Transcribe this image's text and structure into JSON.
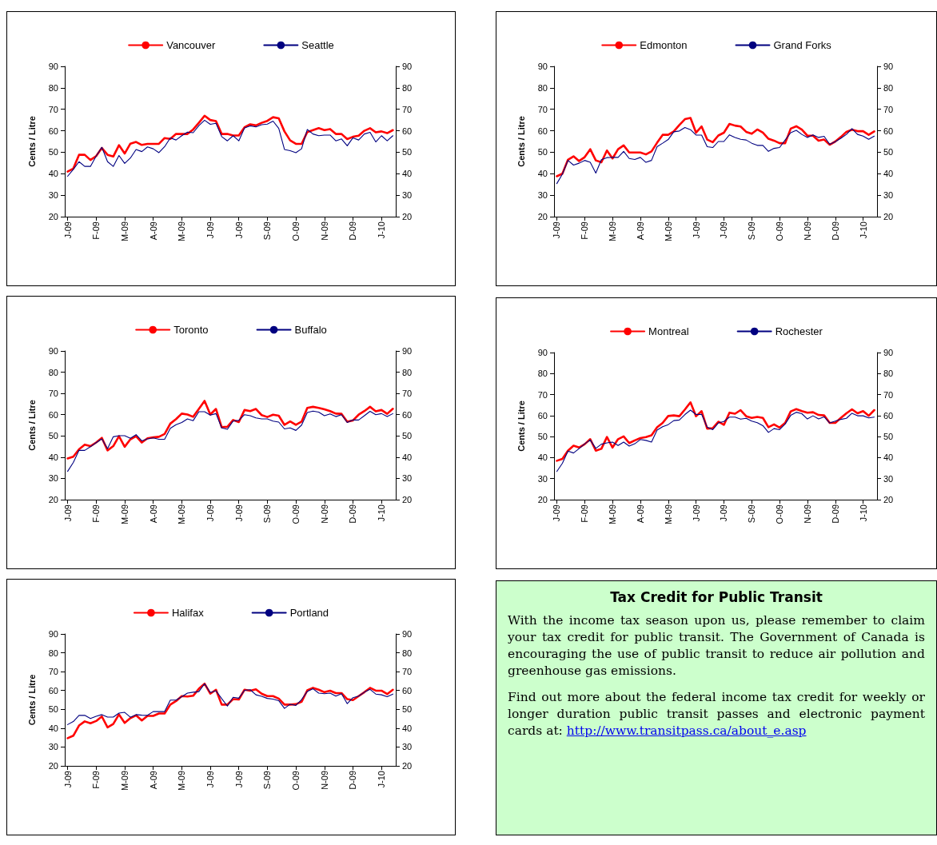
{
  "chart_data": [
    {
      "type": "line",
      "ylabel": "Cents / Litre",
      "ylim": [
        20,
        90
      ],
      "yticks": [
        20,
        30,
        40,
        50,
        60,
        70,
        80,
        90
      ],
      "y2lim": [
        20,
        90
      ],
      "y2ticks": [
        20,
        30,
        40,
        50,
        60,
        70,
        80,
        90
      ],
      "legend": "top",
      "marker": "none",
      "line_style": "solid",
      "categories": [
        "J-09",
        null,
        null,
        null,
        null,
        "F-09",
        null,
        null,
        null,
        null,
        "M-09",
        null,
        null,
        null,
        null,
        "A-09",
        null,
        null,
        null,
        null,
        "M-09",
        null,
        null,
        null,
        null,
        "J-09",
        null,
        null,
        null,
        null,
        "J-09",
        null,
        null,
        null,
        null,
        "S-09",
        null,
        null,
        null,
        null,
        "O-09",
        null,
        null,
        null,
        null,
        "N-09",
        null,
        null,
        null,
        null,
        "D-09",
        null,
        null,
        null,
        null,
        "J-10",
        null,
        null
      ],
      "series": [
        {
          "name": "Vancouver",
          "color": "#ff0000",
          "values": [
            41,
            42.4,
            48.8,
            48.8,
            46.4,
            48.2,
            52,
            48.8,
            48,
            53.3,
            49.4,
            54,
            54.8,
            53.4,
            53.9,
            53.9,
            53.9,
            56.6,
            56.2,
            58.5,
            58.5,
            58.5,
            60.6,
            63.7,
            67,
            65,
            64.5,
            58.5,
            58.5,
            57.8,
            57.8,
            61.6,
            63,
            62.5,
            63.7,
            64.6,
            66.3,
            65.8,
            59.7,
            55.5,
            53.9,
            53.9,
            59.4,
            60.3,
            61.2,
            60.3,
            60.8,
            58.5,
            58.5,
            56.1,
            57.2,
            57.7,
            60,
            61.2,
            59.3,
            59.7,
            58.9,
            60.3
          ]
        },
        {
          "name": "Seattle",
          "color": "#000080",
          "values": [
            38.8,
            42,
            45.6,
            43.4,
            43.4,
            48.2,
            52.3,
            45.6,
            43.4,
            48.5,
            44.8,
            47.3,
            51.3,
            50.3,
            52.5,
            51.6,
            49.8,
            52.6,
            56.7,
            55.7,
            57.7,
            59.4,
            59.1,
            62.4,
            64.9,
            63,
            63.5,
            57.3,
            55.3,
            57.7,
            55.3,
            61.3,
            62.3,
            61.8,
            62.8,
            63.1,
            64.5,
            61.1,
            51.3,
            50.7,
            49.8,
            51.6,
            60.6,
            58.5,
            57.7,
            58,
            58,
            55.3,
            56.2,
            53,
            56.7,
            55.7,
            58.5,
            59.3,
            54.8,
            57.7,
            55.3,
            57.7
          ]
        }
      ]
    },
    {
      "type": "line",
      "ylabel": "Cents / Litre",
      "ylim": [
        20,
        90
      ],
      "yticks": [
        20,
        30,
        40,
        50,
        60,
        70,
        80,
        90
      ],
      "y2lim": [
        20,
        90
      ],
      "y2ticks": [
        20,
        30,
        40,
        50,
        60,
        70,
        80,
        90
      ],
      "legend": "top",
      "marker": "none",
      "line_style": "solid",
      "categories": [
        "J-09",
        null,
        null,
        null,
        null,
        "F-09",
        null,
        null,
        null,
        null,
        "M-09",
        null,
        null,
        null,
        null,
        "A-09",
        null,
        null,
        null,
        null,
        "M-09",
        null,
        null,
        null,
        null,
        "J-09",
        null,
        null,
        null,
        null,
        "J-09",
        null,
        null,
        null,
        null,
        "S-09",
        null,
        null,
        null,
        null,
        "O-09",
        null,
        null,
        null,
        null,
        "N-09",
        null,
        null,
        null,
        null,
        "D-09",
        null,
        null,
        null,
        null,
        "J-10",
        null,
        null
      ],
      "series": [
        {
          "name": "Edmonton",
          "color": "#ff0000",
          "values": [
            38.8,
            40,
            46.5,
            48.1,
            45.9,
            47.7,
            51.4,
            46.2,
            45.3,
            50.8,
            47.1,
            51.4,
            53.2,
            49.9,
            49.9,
            49.9,
            49,
            50.4,
            54.4,
            58.1,
            58.1,
            59.7,
            62.7,
            65.4,
            66,
            59.1,
            62,
            55.9,
            54.7,
            57.8,
            59.1,
            63.2,
            62.4,
            62,
            59.5,
            58.6,
            60.6,
            59.1,
            56.3,
            55.4,
            54.2,
            54.2,
            61,
            62.1,
            60.5,
            57.7,
            57.7,
            55.4,
            55.9,
            53.5,
            55,
            57.1,
            59.5,
            60.5,
            59.8,
            59.8,
            58.1,
            59.7
          ]
        },
        {
          "name": "Grand Forks",
          "color": "#000080",
          "values": [
            35.4,
            39.8,
            46.2,
            44,
            44.9,
            46.2,
            45.3,
            40.3,
            46.5,
            47.5,
            47.6,
            47.6,
            50.4,
            47.1,
            46.6,
            47.6,
            45.3,
            46.2,
            52.6,
            54.2,
            55.9,
            59.5,
            59.9,
            61.5,
            60.5,
            58,
            58,
            52.6,
            52.2,
            55,
            55,
            58.1,
            56.9,
            56,
            55.7,
            54.2,
            53.2,
            53.2,
            50.4,
            51.8,
            52.2,
            55.7,
            59.1,
            60.2,
            58.3,
            56.9,
            58.1,
            56.9,
            57.4,
            53.7,
            54.9,
            56.5,
            58.3,
            61,
            58.3,
            57.5,
            56,
            57.5
          ]
        }
      ]
    },
    {
      "type": "line",
      "ylabel": "Cents / Litre",
      "ylim": [
        20,
        90
      ],
      "yticks": [
        20,
        30,
        40,
        50,
        60,
        70,
        80,
        90
      ],
      "y2lim": [
        20,
        90
      ],
      "y2ticks": [
        20,
        30,
        40,
        50,
        60,
        70,
        80,
        90
      ],
      "legend": "top",
      "marker": "none",
      "line_style": "solid",
      "categories": [
        "J-09",
        null,
        null,
        null,
        null,
        "F-09",
        null,
        null,
        null,
        null,
        "M-09",
        null,
        null,
        null,
        null,
        "A-09",
        null,
        null,
        null,
        null,
        "M-09",
        null,
        null,
        null,
        null,
        "J-09",
        null,
        null,
        null,
        null,
        "J-09",
        null,
        null,
        null,
        null,
        "S-09",
        null,
        null,
        null,
        null,
        "O-09",
        null,
        null,
        null,
        null,
        "N-09",
        null,
        null,
        null,
        null,
        "D-09",
        null,
        null,
        null,
        null,
        "J-10",
        null,
        null
      ],
      "series": [
        {
          "name": "Toronto",
          "color": "#ff0000",
          "values": [
            39.4,
            40.2,
            43.7,
            45.9,
            45.2,
            46.9,
            49.1,
            43.2,
            45.2,
            49.9,
            44.9,
            48.4,
            49.9,
            46.9,
            48.9,
            49.3,
            49.6,
            50.9,
            55.8,
            57.9,
            60.5,
            60.1,
            59,
            62.7,
            66.5,
            60.1,
            62.7,
            54.1,
            54.3,
            57.5,
            56.5,
            62.2,
            61.7,
            62.7,
            59.8,
            58.9,
            60,
            59.5,
            55.2,
            56.8,
            55.2,
            56.7,
            63.2,
            63.7,
            63.2,
            62.5,
            61.7,
            60.5,
            60.4,
            56.7,
            57.3,
            60,
            61.7,
            63.7,
            61.6,
            62.2,
            60.4,
            62.8
          ]
        },
        {
          "name": "Buffalo",
          "color": "#000080",
          "values": [
            33.3,
            37.5,
            43.2,
            43.2,
            44.9,
            46.8,
            48.6,
            44,
            49.6,
            50.1,
            50.1,
            48.9,
            50.6,
            47.7,
            48.6,
            49.1,
            48.4,
            48.4,
            53.6,
            55.3,
            56.3,
            58,
            57.2,
            61.4,
            61.4,
            59.8,
            60.5,
            53.8,
            53.1,
            57,
            57.3,
            60,
            59.5,
            58.5,
            58,
            58,
            57,
            56.5,
            53.3,
            53.8,
            52.6,
            55.1,
            61,
            61.7,
            61.2,
            59.5,
            60.4,
            59.1,
            60,
            56.3,
            57.5,
            57.5,
            59.5,
            61.6,
            60,
            60.5,
            59.1,
            60.5
          ]
        }
      ]
    },
    {
      "type": "line",
      "ylabel": "Cents / Litre",
      "ylim": [
        20,
        90
      ],
      "yticks": [
        20,
        30,
        40,
        50,
        60,
        70,
        80,
        90
      ],
      "y2lim": [
        20,
        90
      ],
      "y2ticks": [
        20,
        30,
        40,
        50,
        60,
        70,
        80,
        90
      ],
      "legend": "top",
      "marker": "none",
      "line_style": "solid",
      "categories": [
        "J-09",
        null,
        null,
        null,
        null,
        "F-09",
        null,
        null,
        null,
        null,
        "M-09",
        null,
        null,
        null,
        null,
        "A-09",
        null,
        null,
        null,
        null,
        "M-09",
        null,
        null,
        null,
        null,
        "J-09",
        null,
        null,
        null,
        null,
        "J-09",
        null,
        null,
        null,
        null,
        "S-09",
        null,
        null,
        null,
        null,
        "O-09",
        null,
        null,
        null,
        null,
        "N-09",
        null,
        null,
        null,
        null,
        "D-09",
        null,
        null,
        null,
        null,
        "J-10",
        null,
        null
      ],
      "series": [
        {
          "name": "Montreal",
          "color": "#ff0000",
          "values": [
            38.5,
            39.4,
            43.3,
            45.7,
            44.8,
            46.4,
            48.8,
            43.3,
            44.2,
            49.8,
            44.8,
            48.8,
            50.1,
            46.9,
            48.2,
            49.3,
            49.8,
            50.6,
            54.4,
            56.5,
            59.8,
            60.1,
            59.7,
            62.9,
            66.3,
            59.7,
            62.1,
            53.8,
            54,
            57.1,
            55.6,
            61.4,
            60.9,
            62.6,
            59.7,
            58.9,
            59.4,
            58.9,
            54.5,
            55.8,
            54.3,
            56.5,
            62,
            63.1,
            62.1,
            61.4,
            61.6,
            60.3,
            60.1,
            56.5,
            56.5,
            58.9,
            61.1,
            63,
            61.1,
            62.1,
            59.9,
            62.6
          ]
        },
        {
          "name": "Rochester",
          "color": "#000080",
          "values": [
            33.4,
            37.3,
            43.1,
            42.2,
            44.3,
            46.6,
            48.4,
            44.4,
            46.4,
            47,
            47.4,
            45.8,
            47.4,
            45.5,
            46.6,
            48.6,
            48.2,
            47.4,
            53.1,
            54.7,
            55.7,
            57.6,
            57.9,
            60.5,
            62.6,
            60.5,
            60.6,
            54.5,
            53.3,
            56.5,
            57.2,
            59.3,
            59.3,
            58.3,
            58.7,
            57.4,
            56.6,
            55.2,
            52,
            53.8,
            53.3,
            56,
            60.1,
            61.6,
            60.9,
            58.4,
            59.9,
            58.4,
            59.4,
            56.5,
            57.4,
            58.2,
            58.7,
            61.1,
            59.9,
            59.9,
            58.9,
            59.3
          ]
        }
      ]
    },
    {
      "type": "line",
      "ylabel": "Cents / Litre",
      "ylim": [
        20,
        90
      ],
      "yticks": [
        20,
        30,
        40,
        50,
        60,
        70,
        80,
        90
      ],
      "y2lim": [
        20,
        90
      ],
      "y2ticks": [
        20,
        30,
        40,
        50,
        60,
        70,
        80,
        90
      ],
      "legend": "top",
      "marker": "none",
      "line_style": "solid",
      "categories": [
        "J-09",
        null,
        null,
        null,
        null,
        "F-09",
        null,
        null,
        null,
        null,
        "M-09",
        null,
        null,
        null,
        null,
        "A-09",
        null,
        null,
        null,
        null,
        "M-09",
        null,
        null,
        null,
        null,
        "J-09",
        null,
        null,
        null,
        null,
        "J-09",
        null,
        null,
        null,
        null,
        "S-09",
        null,
        null,
        null,
        null,
        "O-09",
        null,
        null,
        null,
        null,
        "N-09",
        null,
        null,
        null,
        null,
        "D-09",
        null,
        null,
        null,
        null,
        "J-10",
        null,
        null
      ],
      "series": [
        {
          "name": "Halifax",
          "color": "#ff0000",
          "values": [
            34.7,
            36,
            41.4,
            43.6,
            42.6,
            43.8,
            46.2,
            40.4,
            42.2,
            47.3,
            42.8,
            45.3,
            46.8,
            44.1,
            46.5,
            46.5,
            47.8,
            47.8,
            52.5,
            54.4,
            57,
            56.8,
            57.2,
            60.9,
            63.6,
            58.3,
            60.4,
            52.5,
            52.5,
            55.4,
            55.2,
            60.4,
            59.9,
            60.6,
            58.3,
            57,
            57,
            55.7,
            52.5,
            52.5,
            52.7,
            54,
            60.1,
            61.4,
            60.4,
            59.1,
            59.9,
            58.6,
            58.6,
            55.4,
            54.9,
            57,
            59.1,
            61.4,
            59.9,
            59.9,
            58.1,
            60.4
          ]
        },
        {
          "name": "Portland",
          "color": "#000080",
          "values": [
            41.9,
            43.5,
            46.8,
            46.8,
            45.1,
            46.3,
            47.2,
            45.9,
            45.9,
            48,
            48.4,
            45.8,
            47.2,
            46.9,
            46.8,
            48.8,
            48.8,
            48.8,
            54.9,
            54.9,
            56.7,
            58.6,
            59.1,
            59.4,
            63.6,
            58.9,
            59.9,
            55.7,
            51.7,
            56.4,
            55.9,
            60.1,
            60.4,
            57.7,
            56.9,
            55.8,
            55.4,
            54.6,
            50.5,
            52.7,
            52.1,
            55.2,
            59.5,
            60.9,
            58.6,
            58.3,
            58.6,
            57,
            58.3,
            53,
            56.2,
            57,
            59.1,
            60.6,
            58.1,
            57.7,
            56.7,
            58.1
          ]
        }
      ]
    },
    {
      "type": "other",
      "title": "Tax Credit for Public Transit",
      "annotations": [
        "With the income tax season upon us, please remember to claim your tax credit for public transit. The Government of Canada is encouraging the use of public transit to reduce air pollution and greenhouse gas emissions.",
        "Find out more about the federal income tax credit for weekly or longer duration public transit passes and electronic payment cards at:",
        "http://www.transitpass.ca/about_e.asp"
      ]
    }
  ]
}
